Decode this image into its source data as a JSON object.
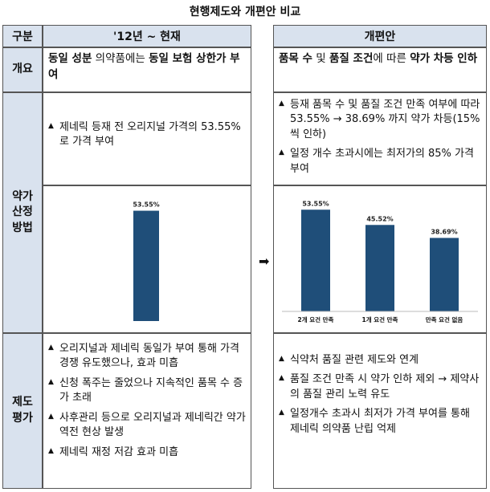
{
  "title": "현행제도와 개편안 비교",
  "header": {
    "label_col": "구분",
    "current": "'12년 ~ 현재",
    "reform": "개편안"
  },
  "rows": {
    "overview": {
      "label": "개요",
      "current": [
        "동일 성분",
        " 의약품에는 ",
        "동일 보험 상한가 부여"
      ],
      "reform": [
        "품목 수",
        " 및 ",
        "품질 조건",
        "에 따른 ",
        "약가 차등 인하"
      ]
    },
    "pricing": {
      "label_lines": [
        "약가",
        "산정",
        "방법"
      ],
      "current_bullets": [
        "제네릭 등재 전 오리지널 가격의 53.55%로 가격 부여"
      ],
      "reform_bullets": [
        "등재 품목 수 및 품질 조건 만족 여부에 따라 53.55% → 38.69% 까지 약가 차등(15%씩 인하)",
        "일정 개수 초과시에는 최저가의 85% 가격 부여"
      ]
    },
    "evaluation": {
      "label_lines": [
        "제도",
        "평가"
      ],
      "current_bullets": [
        "오리지널과 제네릭 동일가 부여 통해 가격 경쟁 유도했으나, 효과 미흡",
        "신청 폭주는 줄었으나 지속적인 품목 수 증가 초래",
        "사후관리 등으로 오리지널과 제네릭간 약가 역전 현상 발생",
        "제네릭 재정 저감 효과 미흡"
      ],
      "reform_bullets": [
        "식약처 품질 관련 제도와 연계",
        "품질 조건 만족 시 약가 인하 제외 → 제약사의 품질 관리 노력 유도",
        "일정개수 초과시 최저가 가격 부여를 통해 제네릭 의약품 난립 억제"
      ]
    }
  },
  "arrow": "➡",
  "colors": {
    "header_bg": "#d9e2ee",
    "bar": "#1f4e79"
  },
  "chart_data": [
    {
      "type": "bar",
      "categories": [
        ""
      ],
      "values": [
        53.55
      ],
      "data_labels": [
        "53.55%"
      ],
      "ylim": [
        0,
        60
      ],
      "title": "",
      "xlabel": "",
      "ylabel": ""
    },
    {
      "type": "bar",
      "categories": [
        "2개 요건 만족",
        "1개 요건 만족",
        "만족 요건 없음"
      ],
      "values": [
        53.55,
        45.52,
        38.69
      ],
      "data_labels": [
        "53.55%",
        "45.52%",
        "38.69%"
      ],
      "ylim": [
        0,
        60
      ],
      "title": "",
      "xlabel": "",
      "ylabel": ""
    }
  ]
}
